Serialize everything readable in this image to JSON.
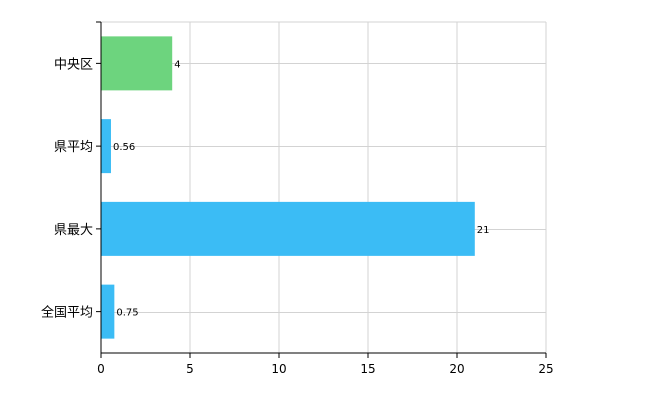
{
  "chart_data": {
    "type": "bar",
    "orientation": "horizontal",
    "title": "",
    "xlabel": "",
    "ylabel": "",
    "categories": [
      "中央区",
      "県平均",
      "県最大",
      "全国平均"
    ],
    "values": [
      4,
      0.56,
      21,
      0.75
    ],
    "value_labels": [
      "4",
      "0.56",
      "21",
      "0.75"
    ],
    "bar_colors": [
      "#6dd47e",
      "#3bbcf5",
      "#3bbcf5",
      "#3bbcf5"
    ],
    "xlim": [
      0,
      25
    ],
    "xticks": [
      0,
      5,
      10,
      15,
      20,
      25
    ],
    "xtick_labels": [
      "0",
      "5",
      "10",
      "15",
      "20",
      "25"
    ],
    "grid": true,
    "legend": "none"
  }
}
